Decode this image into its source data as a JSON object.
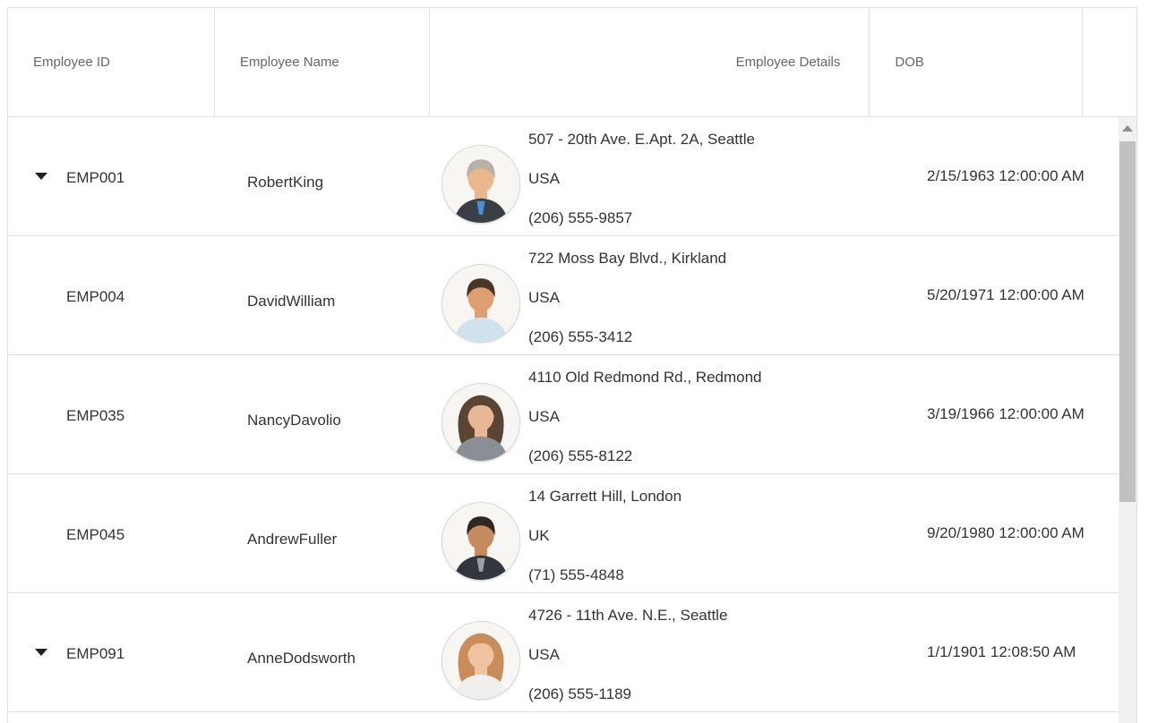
{
  "theme": {
    "border": "#e0e0e0",
    "header_text": "#666666",
    "body_text": "#333333",
    "track": "#f1f1f1",
    "thumb": "#c1c1c1",
    "scroll_arrow": "#8d8d8d",
    "caret": "#212121"
  },
  "grid": {
    "columns": [
      {
        "label": "Employee ID",
        "align": "left"
      },
      {
        "label": "Employee Name",
        "align": "left"
      },
      {
        "label": "Employee Details",
        "align": "right"
      },
      {
        "label": "DOB",
        "align": "left"
      }
    ],
    "rows": [
      {
        "expandable": true,
        "id": "EMP001",
        "name": "RobertKing",
        "address": "507 - 20th Ave. E.Apt. 2A, Seattle",
        "country": "USA",
        "phone": "(206) 555-9857",
        "dob": "2/15/1963 12:00:00 AM",
        "avatar": {
          "person": "robert-king",
          "style": "short",
          "hair": "#b8b1a8",
          "skin": "#e9b68e",
          "top": "#3a3f45",
          "accent": "#4a90d9"
        }
      },
      {
        "expandable": false,
        "id": "EMP004",
        "name": "DavidWilliam",
        "address": "722 Moss Bay Blvd., Kirkland",
        "country": "USA",
        "phone": "(206) 555-3412",
        "dob": "5/20/1971 12:00:00 AM",
        "avatar": {
          "person": "david-william",
          "style": "short",
          "hair": "#4a3627",
          "skin": "#dd9f70",
          "top": "#cfe3ef"
        }
      },
      {
        "expandable": false,
        "id": "EMP035",
        "name": "NancyDavolio",
        "address": "4110 Old Redmond Rd., Redmond",
        "country": "USA",
        "phone": "(206) 555-8122",
        "dob": "3/19/1966 12:00:00 AM",
        "avatar": {
          "person": "nancy-davolio",
          "style": "long",
          "hair": "#5a4433",
          "skin": "#e8b795",
          "top": "#8a8f96"
        }
      },
      {
        "expandable": false,
        "id": "EMP045",
        "name": "AndrewFuller",
        "address": "14 Garrett Hill, London",
        "country": "UK",
        "phone": "(71) 555-4848",
        "dob": "9/20/1980 12:00:00 AM",
        "avatar": {
          "person": "andrew-fuller",
          "style": "short",
          "hair": "#2e2620",
          "skin": "#c68a5f",
          "top": "#32373d",
          "accent": "#9aa0a6"
        }
      },
      {
        "expandable": true,
        "id": "EMP091",
        "name": "AnneDodsworth",
        "address": "4726 - 11th Ave. N.E., Seattle",
        "country": "USA",
        "phone": "(206) 555-1189",
        "dob": "1/1/1901 12:08:50 AM",
        "avatar": {
          "person": "anne-dodsworth",
          "style": "long",
          "hair": "#c88d5a",
          "skin": "#eec3a0",
          "top": "#f0efed"
        }
      }
    ]
  }
}
